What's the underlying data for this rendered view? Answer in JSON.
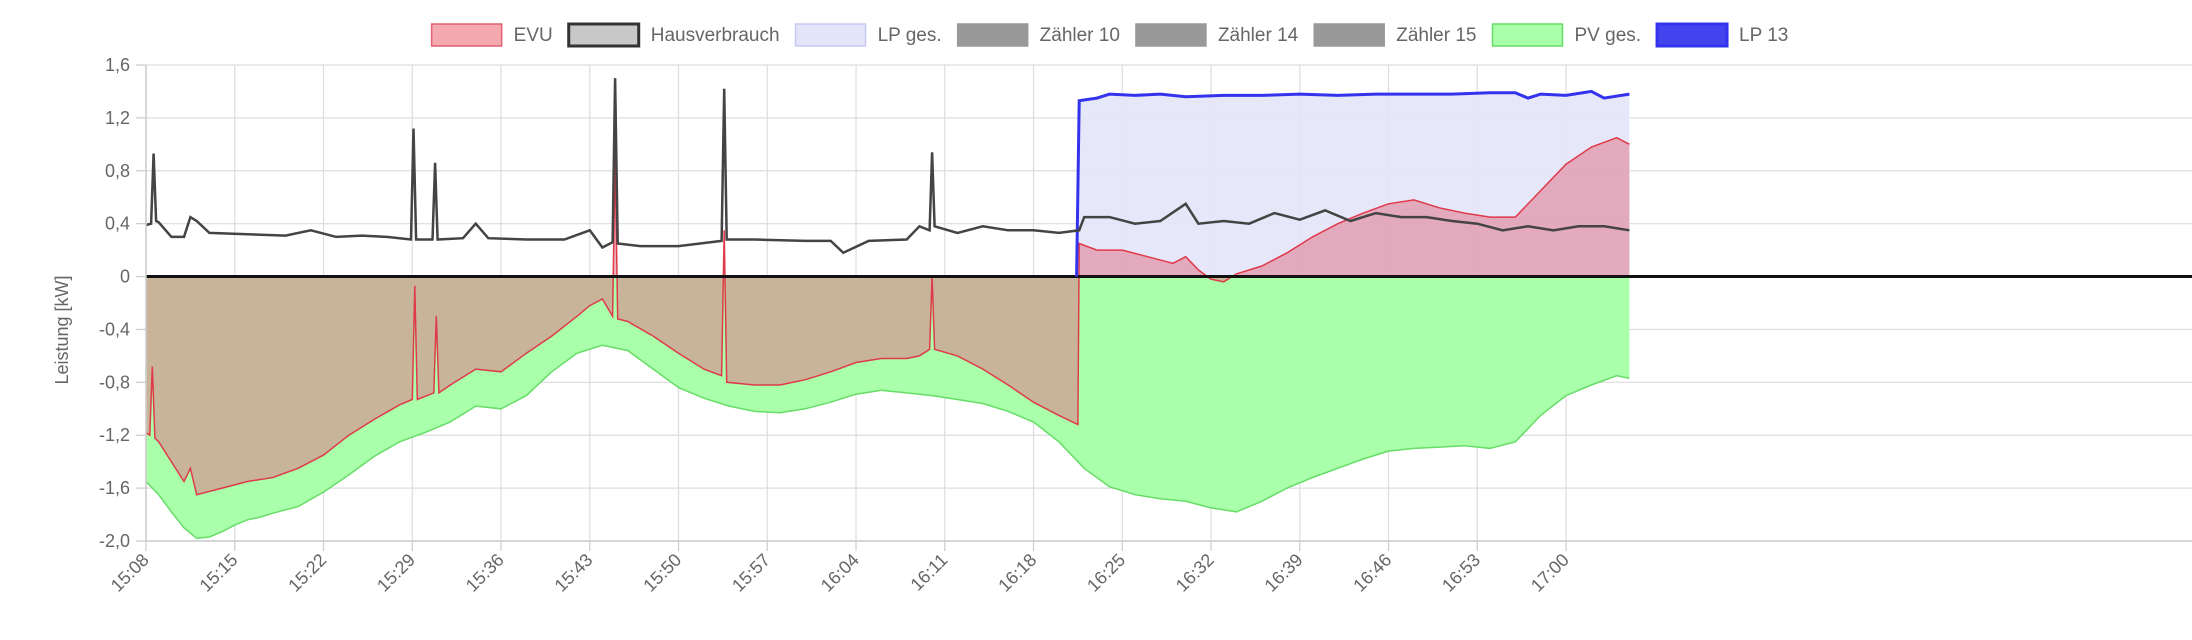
{
  "chart_data": {
    "type": "area",
    "ylabel": "Leistung [kW]",
    "ylim": [
      -2.0,
      1.6
    ],
    "y_ticks": [
      "1,6",
      "1,2",
      "0,8",
      "0,4",
      "0",
      "-0,4",
      "-0,8",
      "-1,2",
      "-1,6",
      "-2,0"
    ],
    "y_tick_values": [
      1.6,
      1.2,
      0.8,
      0.4,
      0,
      -0.4,
      -0.8,
      -1.2,
      -1.6,
      -2.0
    ],
    "x_ticks": [
      "15:08",
      "15:15",
      "15:22",
      "15:29",
      "15:36",
      "15:43",
      "15:50",
      "15:57",
      "16:04",
      "16:11",
      "16:18",
      "16:25",
      "16:32",
      "16:39",
      "16:46",
      "16:53",
      "17:00"
    ],
    "xlim": [
      "15:08",
      "17:05"
    ],
    "grid": true,
    "legend_position": "top",
    "legend": [
      {
        "name": "EVU",
        "color": "#e06070",
        "fill": "#f4a8b0"
      },
      {
        "name": "Hausverbrauch",
        "color": "#333333",
        "fill": "#c8c8c8"
      },
      {
        "name": "LP ges.",
        "color": "#c8c8f4",
        "fill": "#e4e4fa"
      },
      {
        "name": "Zähler 10",
        "color": "#999999",
        "fill": "#999999"
      },
      {
        "name": "Zähler 14",
        "color": "#999999",
        "fill": "#999999"
      },
      {
        "name": "Zähler 15",
        "color": "#999999",
        "fill": "#999999"
      },
      {
        "name": "PV ges.",
        "color": "#66dd66",
        "fill": "#aaffaa"
      },
      {
        "name": "LP 13",
        "color": "#3333ee",
        "fill": "#4444ee"
      }
    ],
    "series": [
      {
        "name": "PV ges.",
        "style": "area",
        "points": [
          [
            "15:08",
            -1.55
          ],
          [
            "15:09",
            -1.65
          ],
          [
            "15:10",
            -1.78
          ],
          [
            "15:11",
            -1.9
          ],
          [
            "15:12",
            -1.98
          ],
          [
            "15:13",
            -1.97
          ],
          [
            "15:14",
            -1.93
          ],
          [
            "15:15",
            -1.88
          ],
          [
            "15:16",
            -1.84
          ],
          [
            "15:17",
            -1.82
          ],
          [
            "15:18",
            -1.79
          ],
          [
            "15:20",
            -1.74
          ],
          [
            "15:22",
            -1.63
          ],
          [
            "15:24",
            -1.5
          ],
          [
            "15:26",
            -1.36
          ],
          [
            "15:28",
            -1.25
          ],
          [
            "15:30",
            -1.18
          ],
          [
            "15:32",
            -1.1
          ],
          [
            "15:34",
            -0.98
          ],
          [
            "15:36",
            -1.0
          ],
          [
            "15:38",
            -0.9
          ],
          [
            "15:40",
            -0.72
          ],
          [
            "15:42",
            -0.58
          ],
          [
            "15:44",
            -0.52
          ],
          [
            "15:46",
            -0.56
          ],
          [
            "15:48",
            -0.7
          ],
          [
            "15:50",
            -0.84
          ],
          [
            "15:52",
            -0.92
          ],
          [
            "15:54",
            -0.98
          ],
          [
            "15:56",
            -1.02
          ],
          [
            "15:58",
            -1.03
          ],
          [
            "16:00",
            -1.0
          ],
          [
            "16:02",
            -0.95
          ],
          [
            "16:04",
            -0.89
          ],
          [
            "16:06",
            -0.86
          ],
          [
            "16:08",
            -0.88
          ],
          [
            "16:10",
            -0.9
          ],
          [
            "16:12",
            -0.93
          ],
          [
            "16:14",
            -0.96
          ],
          [
            "16:16",
            -1.02
          ],
          [
            "16:18",
            -1.1
          ],
          [
            "16:20",
            -1.25
          ],
          [
            "16:22",
            -1.45
          ],
          [
            "16:24",
            -1.59
          ],
          [
            "16:26",
            -1.65
          ],
          [
            "16:28",
            -1.68
          ],
          [
            "16:30",
            -1.7
          ],
          [
            "16:32",
            -1.75
          ],
          [
            "16:34",
            -1.78
          ],
          [
            "16:36",
            -1.7
          ],
          [
            "16:38",
            -1.6
          ],
          [
            "16:40",
            -1.52
          ],
          [
            "16:42",
            -1.45
          ],
          [
            "16:44",
            -1.38
          ],
          [
            "16:46",
            -1.32
          ],
          [
            "16:48",
            -1.3
          ],
          [
            "16:50",
            -1.29
          ],
          [
            "16:52",
            -1.28
          ],
          [
            "16:54",
            -1.3
          ],
          [
            "16:56",
            -1.25
          ],
          [
            "16:58",
            -1.05
          ],
          [
            "17:00",
            -0.9
          ],
          [
            "17:02",
            -0.82
          ],
          [
            "17:04",
            -0.75
          ],
          [
            "17:05",
            -0.77
          ]
        ]
      },
      {
        "name": "EVU",
        "style": "area",
        "points": [
          [
            "15:08",
            -1.18
          ],
          [
            "15:08.3",
            -1.2
          ],
          [
            "15:08.5",
            -0.68
          ],
          [
            "15:08.7",
            -1.22
          ],
          [
            "15:09",
            -1.25
          ],
          [
            "15:11",
            -1.55
          ],
          [
            "15:11.5",
            -1.45
          ],
          [
            "15:12",
            -1.65
          ],
          [
            "15:14",
            -1.6
          ],
          [
            "15:16",
            -1.55
          ],
          [
            "15:18",
            -1.52
          ],
          [
            "15:20",
            -1.45
          ],
          [
            "15:22",
            -1.35
          ],
          [
            "15:24",
            -1.2
          ],
          [
            "15:26",
            -1.08
          ],
          [
            "15:28",
            -0.97
          ],
          [
            "15:29",
            -0.93
          ],
          [
            "15:29.2",
            -0.07
          ],
          [
            "15:29.4",
            -0.93
          ],
          [
            "15:30.7",
            -0.88
          ],
          [
            "15:30.9",
            -0.3
          ],
          [
            "15:31.1",
            -0.88
          ],
          [
            "15:32",
            -0.82
          ],
          [
            "15:34",
            -0.7
          ],
          [
            "15:36",
            -0.72
          ],
          [
            "15:38",
            -0.58
          ],
          [
            "15:40",
            -0.45
          ],
          [
            "15:42",
            -0.3
          ],
          [
            "15:43",
            -0.22
          ],
          [
            "15:44",
            -0.17
          ],
          [
            "15:44.8",
            -0.3
          ],
          [
            "15:45",
            0.9
          ],
          [
            "15:45.2",
            -0.32
          ],
          [
            "15:46",
            -0.34
          ],
          [
            "15:48",
            -0.45
          ],
          [
            "15:50",
            -0.58
          ],
          [
            "15:52",
            -0.7
          ],
          [
            "15:53.4",
            -0.75
          ],
          [
            "15:53.6",
            0.35
          ],
          [
            "15:53.8",
            -0.8
          ],
          [
            "15:56",
            -0.82
          ],
          [
            "15:58",
            -0.82
          ],
          [
            "16:00",
            -0.78
          ],
          [
            "16:02",
            -0.72
          ],
          [
            "16:04",
            -0.65
          ],
          [
            "16:06",
            -0.62
          ],
          [
            "16:08",
            -0.62
          ],
          [
            "16:09",
            -0.6
          ],
          [
            "16:09.8",
            -0.55
          ],
          [
            "16:10",
            0.0
          ],
          [
            "16:10.2",
            -0.55
          ],
          [
            "16:12",
            -0.6
          ],
          [
            "16:14",
            -0.7
          ],
          [
            "16:16",
            -0.82
          ],
          [
            "16:18",
            -0.95
          ],
          [
            "16:20",
            -1.05
          ],
          [
            "16:21.5",
            -1.12
          ],
          [
            "16:21.6",
            0.25
          ],
          [
            "16:23",
            0.2
          ],
          [
            "16:25",
            0.2
          ],
          [
            "16:27",
            0.15
          ],
          [
            "16:29",
            0.1
          ],
          [
            "16:30",
            0.15
          ],
          [
            "16:31",
            0.05
          ],
          [
            "16:32",
            -0.02
          ],
          [
            "16:33",
            -0.04
          ],
          [
            "16:34",
            0.02
          ],
          [
            "16:36",
            0.08
          ],
          [
            "16:38",
            0.18
          ],
          [
            "16:40",
            0.3
          ],
          [
            "16:42",
            0.4
          ],
          [
            "16:44",
            0.48
          ],
          [
            "16:46",
            0.55
          ],
          [
            "16:48",
            0.58
          ],
          [
            "16:50",
            0.52
          ],
          [
            "16:52",
            0.48
          ],
          [
            "16:54",
            0.45
          ],
          [
            "16:56",
            0.45
          ],
          [
            "16:58",
            0.65
          ],
          [
            "17:00",
            0.85
          ],
          [
            "17:02",
            0.98
          ],
          [
            "17:04",
            1.05
          ],
          [
            "17:05",
            1.0
          ]
        ]
      },
      {
        "name": "Hausverbrauch",
        "style": "line",
        "points": [
          [
            "15:08",
            0.39
          ],
          [
            "15:08.4",
            0.4
          ],
          [
            "15:08.6",
            0.93
          ],
          [
            "15:08.8",
            0.42
          ],
          [
            "15:09",
            0.41
          ],
          [
            "15:10",
            0.3
          ],
          [
            "15:11",
            0.3
          ],
          [
            "15:11.5",
            0.45
          ],
          [
            "15:12",
            0.42
          ],
          [
            "15:13",
            0.33
          ],
          [
            "15:16",
            0.32
          ],
          [
            "15:19",
            0.31
          ],
          [
            "15:21",
            0.35
          ],
          [
            "15:23",
            0.3
          ],
          [
            "15:25",
            0.31
          ],
          [
            "15:27",
            0.3
          ],
          [
            "15:28.9",
            0.28
          ],
          [
            "15:29.1",
            1.12
          ],
          [
            "15:29.3",
            0.28
          ],
          [
            "15:30.6",
            0.28
          ],
          [
            "15:30.8",
            0.86
          ],
          [
            "15:31",
            0.28
          ],
          [
            "15:33",
            0.29
          ],
          [
            "15:34",
            0.4
          ],
          [
            "15:35",
            0.29
          ],
          [
            "15:38",
            0.28
          ],
          [
            "15:41",
            0.28
          ],
          [
            "15:43",
            0.35
          ],
          [
            "15:44",
            0.22
          ],
          [
            "15:44.8",
            0.26
          ],
          [
            "15:45",
            1.5
          ],
          [
            "15:45.2",
            0.25
          ],
          [
            "15:47",
            0.23
          ],
          [
            "15:50",
            0.23
          ],
          [
            "15:53.4",
            0.27
          ],
          [
            "15:53.6",
            1.42
          ],
          [
            "15:53.8",
            0.28
          ],
          [
            "15:56",
            0.28
          ],
          [
            "16:00",
            0.27
          ],
          [
            "16:02",
            0.27
          ],
          [
            "16:03",
            0.18
          ],
          [
            "16:05",
            0.27
          ],
          [
            "16:08",
            0.28
          ],
          [
            "16:09",
            0.38
          ],
          [
            "16:09.8",
            0.35
          ],
          [
            "16:10",
            0.94
          ],
          [
            "16:10.2",
            0.38
          ],
          [
            "16:12",
            0.33
          ],
          [
            "16:14",
            0.38
          ],
          [
            "16:16",
            0.35
          ],
          [
            "16:18",
            0.35
          ],
          [
            "16:20",
            0.33
          ],
          [
            "16:21.6",
            0.35
          ],
          [
            "16:22",
            0.45
          ],
          [
            "16:24",
            0.45
          ],
          [
            "16:26",
            0.4
          ],
          [
            "16:28",
            0.42
          ],
          [
            "16:30",
            0.55
          ],
          [
            "16:31",
            0.4
          ],
          [
            "16:33",
            0.42
          ],
          [
            "16:35",
            0.4
          ],
          [
            "16:37",
            0.48
          ],
          [
            "16:39",
            0.43
          ],
          [
            "16:41",
            0.5
          ],
          [
            "16:43",
            0.42
          ],
          [
            "16:45",
            0.48
          ],
          [
            "16:47",
            0.45
          ],
          [
            "16:49",
            0.45
          ],
          [
            "16:51",
            0.42
          ],
          [
            "16:53",
            0.4
          ],
          [
            "16:55",
            0.35
          ],
          [
            "16:57",
            0.38
          ],
          [
            "16:59",
            0.35
          ],
          [
            "17:01",
            0.38
          ],
          [
            "17:03",
            0.38
          ],
          [
            "17:05",
            0.35
          ]
        ]
      },
      {
        "name": "LP 13",
        "style": "area",
        "points": [
          [
            "16:21.4",
            0.0
          ],
          [
            "16:21.6",
            1.33
          ],
          [
            "16:23",
            1.35
          ],
          [
            "16:24",
            1.38
          ],
          [
            "16:26",
            1.37
          ],
          [
            "16:28",
            1.38
          ],
          [
            "16:30",
            1.36
          ],
          [
            "16:33",
            1.37
          ],
          [
            "16:36",
            1.37
          ],
          [
            "16:39",
            1.38
          ],
          [
            "16:42",
            1.37
          ],
          [
            "16:45",
            1.38
          ],
          [
            "16:48",
            1.38
          ],
          [
            "16:51",
            1.38
          ],
          [
            "16:54",
            1.39
          ],
          [
            "16:56",
            1.39
          ],
          [
            "16:57",
            1.35
          ],
          [
            "16:58",
            1.38
          ],
          [
            "17:00",
            1.37
          ],
          [
            "17:02",
            1.4
          ],
          [
            "17:03",
            1.35
          ],
          [
            "17:05",
            1.38
          ]
        ]
      }
    ]
  }
}
